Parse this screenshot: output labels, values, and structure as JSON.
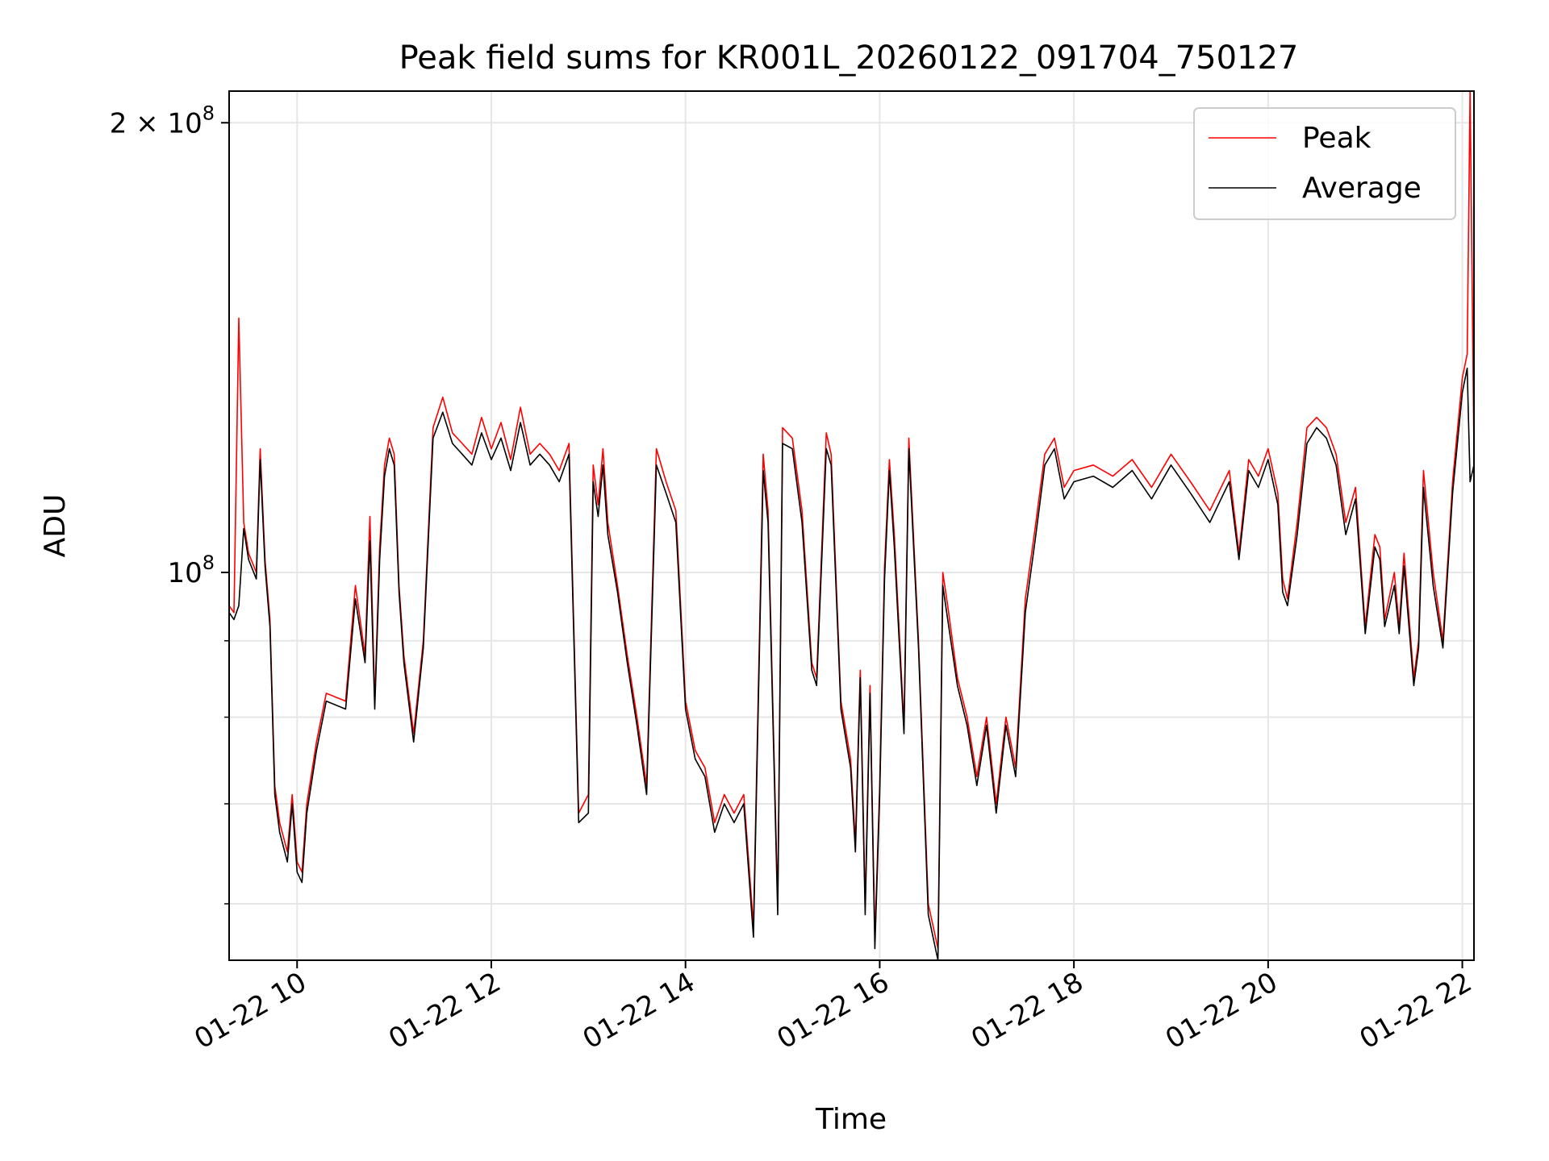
{
  "chart_data": {
    "type": "line",
    "title": "Peak field sums for KR001L_20260122_091704_750127",
    "xlabel": "Time",
    "ylabel": "ADU",
    "x_tick_labels": [
      "01-22 10",
      "01-22 12",
      "01-22 14",
      "01-22 16",
      "01-22 18",
      "01-22 20",
      "01-22 22"
    ],
    "x_tick_hours": [
      10,
      12,
      14,
      16,
      18,
      20,
      22
    ],
    "xlim_hours": [
      9.3,
      22.12
    ],
    "y_scale": "log",
    "ylim": [
      55000000,
      210000000
    ],
    "y_major_ticks": [
      {
        "value": 100000000,
        "base": "10",
        "exp": "8",
        "coef": ""
      },
      {
        "value": 200000000,
        "base": "10",
        "exp": "8",
        "coef": "2 × "
      }
    ],
    "y_minor_ticks": [
      60000000,
      70000000,
      80000000,
      90000000
    ],
    "grid": true,
    "legend": {
      "position": "upper-right"
    },
    "colors": {
      "peak": "#ff0000",
      "average": "#000000",
      "grid": "#e6e6e6"
    },
    "series": [
      {
        "name": "Peak",
        "color": "#ff0000",
        "x_hours": [
          9.3,
          9.35,
          9.4,
          9.45,
          9.5,
          9.58,
          9.62,
          9.67,
          9.72,
          9.77,
          9.82,
          9.9,
          9.95,
          10.0,
          10.05,
          10.1,
          10.2,
          10.3,
          10.5,
          10.6,
          10.7,
          10.75,
          10.8,
          10.85,
          10.9,
          10.95,
          11.0,
          11.05,
          11.1,
          11.2,
          11.3,
          11.4,
          11.5,
          11.6,
          11.7,
          11.8,
          11.9,
          12.0,
          12.1,
          12.2,
          12.3,
          12.4,
          12.5,
          12.6,
          12.7,
          12.8,
          12.9,
          13.0,
          13.05,
          13.1,
          13.15,
          13.2,
          13.3,
          13.4,
          13.5,
          13.6,
          13.7,
          13.8,
          13.9,
          14.0,
          14.1,
          14.2,
          14.3,
          14.4,
          14.5,
          14.6,
          14.7,
          14.8,
          14.85,
          14.95,
          15.0,
          15.1,
          15.2,
          15.3,
          15.35,
          15.45,
          15.5,
          15.6,
          15.7,
          15.75,
          15.8,
          15.85,
          15.9,
          15.95,
          16.0,
          16.05,
          16.1,
          16.15,
          16.25,
          16.3,
          16.4,
          16.5,
          16.6,
          16.65,
          16.7,
          16.8,
          16.9,
          17.0,
          17.1,
          17.2,
          17.3,
          17.4,
          17.5,
          17.6,
          17.7,
          17.8,
          17.9,
          18.0,
          18.2,
          18.4,
          18.6,
          18.8,
          19.0,
          19.2,
          19.4,
          19.6,
          19.7,
          19.8,
          19.9,
          20.0,
          20.1,
          20.15,
          20.2,
          20.3,
          20.4,
          20.5,
          20.6,
          20.7,
          20.8,
          20.9,
          21.0,
          21.1,
          21.15,
          21.2,
          21.3,
          21.35,
          21.4,
          21.5,
          21.55,
          21.6,
          21.7,
          21.8,
          21.9,
          22.0,
          22.05,
          22.08,
          22.12
        ],
        "values": [
          95000000,
          94000000,
          148000000,
          108000000,
          103000000,
          100000000,
          121000000,
          102000000,
          93000000,
          72000000,
          68000000,
          65000000,
          71000000,
          64000000,
          63000000,
          70000000,
          77000000,
          83000000,
          82000000,
          98000000,
          88000000,
          109000000,
          82000000,
          104000000,
          118000000,
          123000000,
          120000000,
          98000000,
          88000000,
          78000000,
          90000000,
          125000000,
          131000000,
          124000000,
          122000000,
          120000000,
          127000000,
          121000000,
          126000000,
          119000000,
          129000000,
          120000000,
          122000000,
          120000000,
          117000000,
          122000000,
          69000000,
          71000000,
          118000000,
          111000000,
          121000000,
          108000000,
          98000000,
          88000000,
          80000000,
          72000000,
          121000000,
          115000000,
          110000000,
          82000000,
          76000000,
          74000000,
          68000000,
          71000000,
          69000000,
          71000000,
          58000000,
          120000000,
          110000000,
          60000000,
          125000000,
          123000000,
          110000000,
          87000000,
          85000000,
          124000000,
          120000000,
          82000000,
          75000000,
          66000000,
          86000000,
          60000000,
          84000000,
          57000000,
          72000000,
          101000000,
          119000000,
          106000000,
          79000000,
          123000000,
          90000000,
          60000000,
          56000000,
          100000000,
          95000000,
          85000000,
          80000000,
          73000000,
          80000000,
          70000000,
          80000000,
          74000000,
          96000000,
          107000000,
          120000000,
          123000000,
          114000000,
          117000000,
          118000000,
          116000000,
          119000000,
          114000000,
          120000000,
          115000000,
          110000000,
          117000000,
          103000000,
          119000000,
          116000000,
          121000000,
          113000000,
          99000000,
          96000000,
          108000000,
          125000000,
          127000000,
          125000000,
          120000000,
          108000000,
          114000000,
          92000000,
          106000000,
          104000000,
          93000000,
          100000000,
          92000000,
          103000000,
          85000000,
          90000000,
          117000000,
          100000000,
          90000000,
          115000000,
          135000000,
          140000000,
          210000000,
          120000000
        ]
      },
      {
        "name": "Average",
        "color": "#000000",
        "x_hours": [
          9.3,
          9.35,
          9.4,
          9.45,
          9.5,
          9.58,
          9.62,
          9.67,
          9.72,
          9.77,
          9.82,
          9.9,
          9.95,
          10.0,
          10.05,
          10.1,
          10.2,
          10.3,
          10.5,
          10.6,
          10.7,
          10.75,
          10.8,
          10.85,
          10.9,
          10.95,
          11.0,
          11.05,
          11.1,
          11.2,
          11.3,
          11.4,
          11.5,
          11.6,
          11.7,
          11.8,
          11.9,
          12.0,
          12.1,
          12.2,
          12.3,
          12.4,
          12.5,
          12.6,
          12.7,
          12.8,
          12.9,
          13.0,
          13.05,
          13.1,
          13.15,
          13.2,
          13.3,
          13.4,
          13.5,
          13.6,
          13.7,
          13.8,
          13.9,
          14.0,
          14.1,
          14.2,
          14.3,
          14.4,
          14.5,
          14.6,
          14.7,
          14.8,
          14.85,
          14.95,
          15.0,
          15.1,
          15.2,
          15.3,
          15.35,
          15.45,
          15.5,
          15.6,
          15.7,
          15.75,
          15.8,
          15.85,
          15.9,
          15.95,
          16.0,
          16.05,
          16.1,
          16.15,
          16.25,
          16.3,
          16.4,
          16.5,
          16.6,
          16.65,
          16.7,
          16.8,
          16.9,
          17.0,
          17.1,
          17.2,
          17.3,
          17.4,
          17.5,
          17.6,
          17.7,
          17.8,
          17.9,
          18.0,
          18.2,
          18.4,
          18.6,
          18.8,
          19.0,
          19.2,
          19.4,
          19.6,
          19.7,
          19.8,
          19.9,
          20.0,
          20.1,
          20.15,
          20.2,
          20.3,
          20.4,
          20.5,
          20.6,
          20.7,
          20.8,
          20.9,
          21.0,
          21.1,
          21.15,
          21.2,
          21.3,
          21.35,
          21.4,
          21.5,
          21.55,
          21.6,
          21.7,
          21.8,
          21.9,
          22.0,
          22.05,
          22.08,
          22.12
        ],
        "values": [
          94000000,
          93000000,
          95000000,
          107000000,
          102000000,
          99000000,
          119000000,
          101000000,
          92000000,
          71000000,
          67000000,
          64000000,
          70000000,
          63000000,
          62000000,
          69000000,
          76000000,
          82000000,
          81000000,
          96000000,
          87000000,
          105000000,
          81000000,
          102000000,
          116000000,
          121000000,
          118000000,
          97000000,
          87000000,
          77000000,
          89000000,
          123000000,
          128000000,
          122000000,
          120000000,
          118000000,
          124000000,
          119000000,
          123000000,
          117000000,
          126000000,
          118000000,
          120000000,
          118000000,
          115000000,
          120000000,
          68000000,
          69000000,
          115000000,
          109000000,
          118000000,
          106000000,
          97000000,
          87000000,
          79000000,
          71000000,
          118000000,
          113000000,
          108000000,
          81000000,
          75000000,
          73000000,
          67000000,
          70000000,
          68000000,
          70000000,
          57000000,
          117000000,
          108000000,
          59000000,
          122000000,
          121000000,
          108000000,
          86000000,
          84000000,
          121000000,
          118000000,
          81000000,
          74000000,
          65000000,
          85000000,
          59000000,
          83000000,
          56000000,
          71000000,
          99000000,
          117000000,
          104000000,
          78000000,
          121000000,
          89000000,
          59000000,
          55000000,
          98000000,
          93000000,
          84000000,
          79000000,
          72000000,
          79000000,
          69000000,
          79000000,
          73000000,
          94000000,
          105000000,
          118000000,
          121000000,
          112000000,
          115000000,
          116000000,
          114000000,
          117000000,
          112000000,
          118000000,
          113000000,
          108000000,
          115000000,
          102000000,
          117000000,
          114000000,
          119000000,
          111000000,
          97000000,
          95000000,
          106000000,
          122000000,
          125000000,
          123000000,
          118000000,
          106000000,
          112000000,
          91000000,
          104000000,
          102000000,
          92000000,
          98000000,
          91000000,
          101000000,
          84000000,
          89000000,
          114000000,
          98000000,
          89000000,
          113000000,
          132000000,
          137000000,
          115000000,
          118000000
        ]
      }
    ]
  }
}
